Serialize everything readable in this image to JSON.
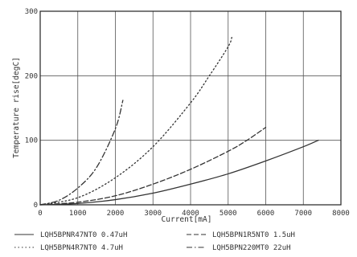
{
  "chart_data": {
    "type": "line",
    "title": "",
    "xlabel": "Current[mA]",
    "ylabel": "Temperature rise[degC]",
    "xlim": [
      0,
      8000
    ],
    "ylim": [
      0,
      300
    ],
    "x_ticks": [
      0,
      1000,
      2000,
      3000,
      4000,
      5000,
      6000,
      7000,
      8000
    ],
    "y_ticks": [
      0,
      100,
      200,
      300
    ],
    "grid": true,
    "legend_position": "bottom",
    "series": [
      {
        "name": "LQH5BPNR47NT0 0.47uH",
        "line_style": "solid",
        "color": "#333333",
        "x": [
          0,
          1000,
          2000,
          3000,
          4000,
          5000,
          6000,
          7000,
          7400
        ],
        "y": [
          0,
          2,
          8,
          18,
          32,
          48,
          68,
          90,
          100
        ]
      },
      {
        "name": "LQH5BPN1R5NT0 1.5uH",
        "line_style": "dashed",
        "color": "#333333",
        "x": [
          0,
          1000,
          2000,
          3000,
          4000,
          5000,
          5500,
          6000
        ],
        "y": [
          0,
          4,
          14,
          32,
          55,
          83,
          100,
          120
        ]
      },
      {
        "name": "LQH5BPN4R7NT0 4.7uH",
        "line_style": "dotted",
        "color": "#333333",
        "x": [
          0,
          1000,
          2000,
          3000,
          4000,
          4500,
          5000,
          5100
        ],
        "y": [
          0,
          11,
          42,
          90,
          158,
          200,
          245,
          260
        ]
      },
      {
        "name": "LQH5BPN220MT0 22uH",
        "line_style": "dash-dot",
        "color": "#333333",
        "x": [
          0,
          500,
          1000,
          1500,
          2000,
          2200
        ],
        "y": [
          0,
          7,
          26,
          58,
          118,
          162
        ]
      }
    ]
  }
}
